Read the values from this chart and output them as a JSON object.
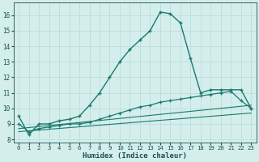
{
  "xlabel": "Humidex (Indice chaleur)",
  "xlim": [
    -0.5,
    23.5
  ],
  "ylim": [
    7.8,
    16.8
  ],
  "yticks": [
    8,
    9,
    10,
    11,
    12,
    13,
    14,
    15,
    16
  ],
  "xticks": [
    0,
    1,
    2,
    3,
    4,
    5,
    6,
    7,
    8,
    9,
    10,
    11,
    12,
    13,
    14,
    15,
    16,
    17,
    18,
    19,
    20,
    21,
    22,
    23
  ],
  "background_color": "#d4eeec",
  "grid_color": "#c0dedd",
  "line_color": "#1a7a6e",
  "main_x": [
    0,
    1,
    2,
    3,
    4,
    5,
    6,
    7,
    8,
    9,
    10,
    11,
    12,
    13,
    14,
    15,
    16,
    17,
    18,
    19,
    20,
    21,
    22,
    23
  ],
  "main_y": [
    9.5,
    8.3,
    9.0,
    9.0,
    9.2,
    9.3,
    9.5,
    10.2,
    11.0,
    12.0,
    13.0,
    13.8,
    14.4,
    15.0,
    16.2,
    16.1,
    15.5,
    13.2,
    11.0,
    11.2,
    11.2,
    11.2,
    11.2,
    10.0
  ],
  "smooth_x": [
    0,
    1,
    2,
    3,
    4,
    5,
    6,
    7,
    8,
    9,
    10,
    11,
    12,
    13,
    14,
    15,
    16,
    17,
    18,
    19,
    20,
    21,
    22,
    23
  ],
  "smooth_y": [
    9.0,
    8.5,
    8.7,
    8.8,
    8.9,
    9.0,
    9.0,
    9.1,
    9.3,
    9.5,
    9.7,
    9.9,
    10.1,
    10.2,
    10.4,
    10.5,
    10.6,
    10.7,
    10.8,
    10.9,
    11.0,
    11.1,
    10.5,
    10.0
  ],
  "line3_x": [
    0,
    23
  ],
  "line3_y": [
    8.7,
    10.2
  ],
  "line4_x": [
    0,
    23
  ],
  "line4_y": [
    8.5,
    9.7
  ]
}
